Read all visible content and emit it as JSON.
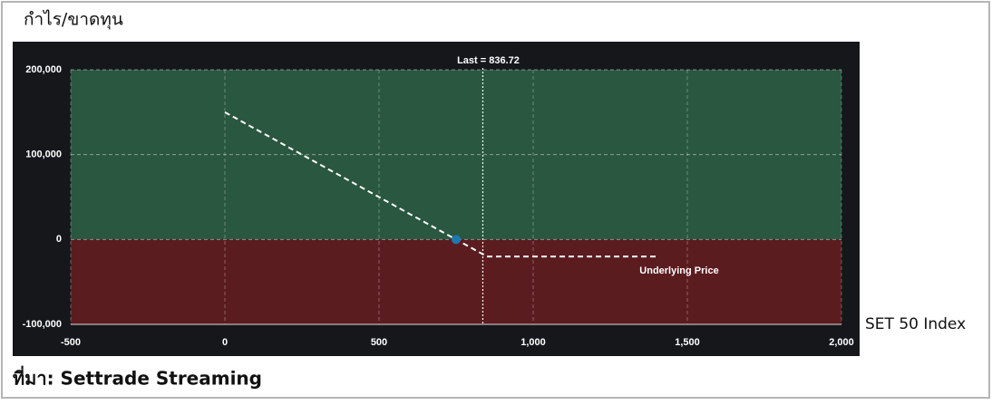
{
  "chart_data": {
    "type": "line",
    "y_axis_label": "กำไร/ขาดทุน",
    "x_axis_label": "SET 50 Index",
    "source": "ที่มา: Settrade Streaming",
    "x": [
      0,
      750,
      850,
      1400
    ],
    "values": [
      150000,
      0,
      -20000,
      -20000
    ],
    "color": "#ffffff",
    "breakeven": {
      "x": 750,
      "y": 0,
      "color": "#1f77b4"
    },
    "reference_line": {
      "value": 836.72,
      "label": "Last = 836.72"
    },
    "annotation": "Underlying Price",
    "profit_color": "#2a573f",
    "loss_color": "#5b1c20",
    "background": "#15171b",
    "xlim": [
      -500,
      2000
    ],
    "xticks": [
      -500,
      0,
      500,
      {
        "value": 1000,
        "label": "1,000"
      },
      {
        "value": 1500,
        "label": "1,500"
      },
      {
        "value": 2000,
        "label": "2,000"
      }
    ],
    "ylim": [
      -100000,
      200000
    ],
    "yticks": [
      {
        "value": -100000,
        "label": "-100,000"
      },
      0,
      {
        "value": 100000,
        "label": "100,000"
      },
      {
        "value": 200000,
        "label": "200,000"
      }
    ],
    "grid": true
  }
}
